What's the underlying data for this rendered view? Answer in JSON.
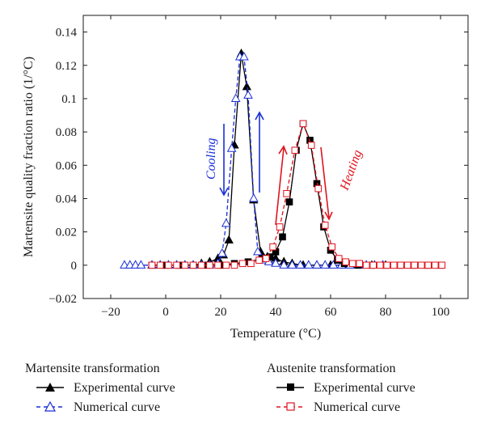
{
  "chart_data": {
    "type": "line",
    "xlabel": "Temperature (°C)",
    "ylabel": "Martensite quality fraction ratio (1/°C)",
    "xlim": [
      -30,
      110
    ],
    "ylim": [
      -0.02,
      0.15
    ],
    "x_ticks": [
      -20,
      0,
      20,
      40,
      60,
      80,
      100
    ],
    "x_tick_labels": [
      "−20",
      "0",
      "20",
      "40",
      "60",
      "80",
      "100"
    ],
    "y_ticks": [
      -0.02,
      0,
      0.02,
      0.04,
      0.06,
      0.08,
      0.1,
      0.12,
      0.14
    ],
    "y_tick_labels": [
      "−0.02",
      "0",
      "0.02",
      "0.04",
      "0.06",
      "0.08",
      "0.1",
      "0.12",
      "0.14"
    ],
    "grid": false,
    "annotations": [
      {
        "text": "Cooling",
        "color": "#1a2fd6"
      },
      {
        "text": "Heating",
        "color": "#e0141e"
      }
    ],
    "series": [
      {
        "name": "Experimental curve",
        "group": "Martensite transformation",
        "color": "#000000",
        "marker": "triangle-filled",
        "line": "solid",
        "x": [
          -5,
          -2,
          1,
          4,
          7,
          10,
          13,
          16,
          19,
          21,
          23,
          25,
          27.5,
          29.5,
          32,
          34.5,
          37,
          40,
          43,
          46,
          50,
          55,
          60,
          65,
          70,
          75,
          80
        ],
        "y": [
          0,
          0,
          0,
          0,
          0,
          0,
          0.001,
          0.002,
          0.004,
          0.006,
          0.015,
          0.072,
          0.127,
          0.107,
          0.039,
          0.008,
          0.005,
          0.004,
          0.002,
          0.001,
          0,
          0,
          0,
          0,
          0,
          0,
          0
        ]
      },
      {
        "name": "Numerical curve",
        "group": "Martensite transformation",
        "color": "#1a2fd6",
        "marker": "triangle-open",
        "line": "dashed",
        "x": [
          -15,
          -13,
          -11,
          -9,
          -5,
          -2,
          1,
          4,
          7,
          10,
          13,
          16,
          19,
          20.5,
          22,
          24,
          25.5,
          27,
          28.5,
          30,
          32,
          33.5,
          35.5,
          37.5,
          40,
          43,
          46,
          49,
          52,
          55,
          58,
          61,
          64,
          67,
          70,
          73,
          76,
          79
        ],
        "y": [
          0,
          0,
          0,
          0,
          0,
          0,
          0,
          0,
          0,
          0,
          0,
          0,
          0.001,
          0.007,
          0.025,
          0.07,
          0.1,
          0.125,
          0.125,
          0.102,
          0.04,
          0.008,
          0.003,
          0.002,
          0.001,
          0,
          0,
          0,
          0,
          0,
          0,
          0,
          0,
          0,
          0,
          0,
          0,
          0
        ]
      },
      {
        "name": "Experimental curve",
        "group": "Austenite transformation",
        "color": "#000000",
        "marker": "square-filled",
        "line": "solid",
        "x": [
          -5,
          0,
          5,
          10,
          15,
          20,
          25,
          30,
          35,
          38,
          40,
          42.5,
          45,
          47.5,
          50,
          52.5,
          55,
          57.5,
          60,
          62.5,
          65,
          70,
          75,
          80,
          85,
          90,
          95,
          100
        ],
        "y": [
          0,
          0,
          0,
          0,
          0,
          0,
          0.001,
          0.002,
          0.004,
          0.005,
          0.008,
          0.017,
          0.038,
          0.069,
          0.085,
          0.075,
          0.049,
          0.023,
          0.009,
          0.003,
          0.001,
          0,
          0,
          0,
          0,
          0,
          0,
          0
        ]
      },
      {
        "name": "Numerical curve",
        "group": "Austenite transformation",
        "color": "#e0141e",
        "marker": "square-open",
        "line": "dashed",
        "x": [
          -5,
          -2,
          1,
          4,
          7,
          10,
          13,
          16,
          19,
          22,
          25,
          28,
          31,
          34,
          36.5,
          39,
          41.5,
          44,
          47,
          50,
          53,
          55.5,
          58,
          60.5,
          63,
          65.5,
          68,
          70.5,
          73,
          75.5,
          78,
          80.5,
          83,
          85.5,
          88,
          90.5,
          93,
          95.5,
          98,
          100.5
        ],
        "y": [
          0,
          0,
          0,
          0,
          0,
          0,
          0,
          0,
          0,
          0,
          0,
          0.001,
          0.001,
          0.003,
          0.004,
          0.011,
          0.023,
          0.043,
          0.069,
          0.085,
          0.072,
          0.046,
          0.024,
          0.011,
          0.004,
          0.002,
          0.001,
          0.001,
          0,
          0,
          0,
          0,
          0,
          0,
          0,
          0,
          0,
          0,
          0,
          0
        ]
      }
    ]
  },
  "legend": {
    "left_title": "Martensite transformation",
    "right_title": "Austenite transformation",
    "left_items": [
      "Experimental curve",
      "Numerical curve"
    ],
    "right_items": [
      "Experimental curve",
      "Numerical curve"
    ]
  }
}
